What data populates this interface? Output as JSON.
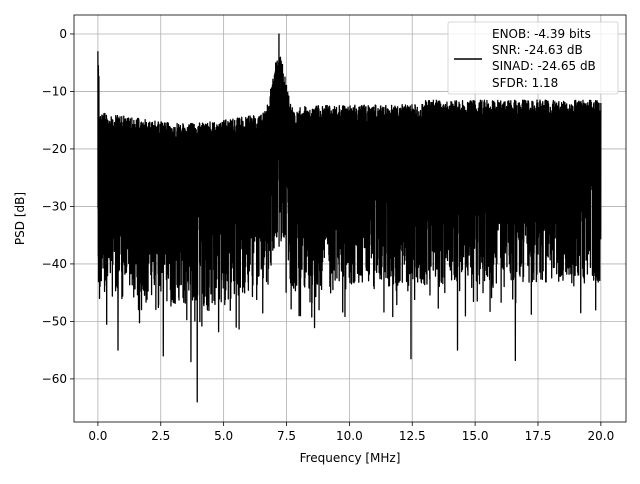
{
  "chart_data": {
    "type": "line",
    "title": "",
    "xlabel": "Frequency [MHz]",
    "ylabel": "PSD [dB]",
    "xlim": [
      -0.95,
      21.0
    ],
    "ylim": [
      -67.5,
      3.3
    ],
    "xticks": [
      0.0,
      2.5,
      5.0,
      7.5,
      10.0,
      12.5,
      15.0,
      17.5,
      20.0
    ],
    "xtick_labels": [
      "0.0",
      "2.5",
      "5.0",
      "7.5",
      "10.0",
      "12.5",
      "15.0",
      "17.5",
      "20.0"
    ],
    "yticks": [
      0,
      -10,
      -20,
      -30,
      -40,
      -50,
      -60
    ],
    "ytick_labels": [
      "0",
      "−10",
      "−20",
      "−30",
      "−40",
      "−50",
      "−60"
    ],
    "grid": true,
    "legend_position": "top-right",
    "series": [
      {
        "name": "ENOB: -4.39 bits\nSNR: -24.63 dB\nSINAD: -24.65 dB\nSFDR: 1.18",
        "color": "#000000",
        "x_range": [
          0.0,
          20.0
        ],
        "description_points": {
          "peaks": [
            {
              "x": 0.0,
              "y": -3.0
            },
            {
              "x": 7.2,
              "y": 0.0
            }
          ],
          "deep_nulls": [
            {
              "x": 0.35,
              "y": -50.5
            },
            {
              "x": 0.8,
              "y": -55.0
            },
            {
              "x": 2.6,
              "y": -56.0
            },
            {
              "x": 3.7,
              "y": -57.0
            },
            {
              "x": 3.95,
              "y": -64.0
            },
            {
              "x": 4.8,
              "y": -51.8
            },
            {
              "x": 5.5,
              "y": -51.0
            },
            {
              "x": 8.0,
              "y": -49.0
            },
            {
              "x": 12.45,
              "y": -56.5
            },
            {
              "x": 14.3,
              "y": -55.0
            },
            {
              "x": 16.6,
              "y": -56.8
            },
            {
              "x": 19.2,
              "y": -48.5
            }
          ]
        }
      }
    ]
  },
  "legend": {
    "lines": [
      "ENOB: -4.39 bits",
      "SNR: -24.63 dB",
      "SINAD: -24.65 dB",
      "SFDR: 1.18"
    ]
  },
  "colors": {
    "series": "#000000",
    "grid": "#b0b0b0",
    "background": "#ffffff"
  }
}
